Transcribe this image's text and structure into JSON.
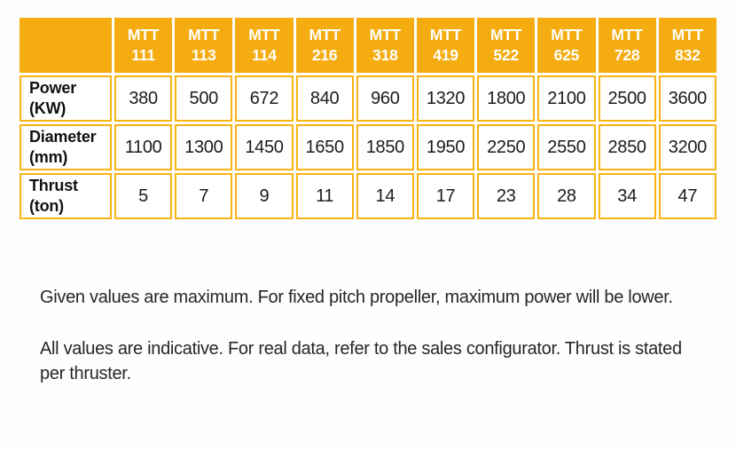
{
  "accent_color": "#F5AC10",
  "border_color": "#F9B313",
  "table": {
    "corner_label": "",
    "models": [
      "MTT 111",
      "MTT 113",
      "MTT 114",
      "MTT 216",
      "MTT 318",
      "MTT 419",
      "MTT 522",
      "MTT 625",
      "MTT 728",
      "MTT 832"
    ],
    "rows": [
      {
        "label": "Power",
        "unit": "(KW)",
        "values": [
          "380",
          "500",
          "672",
          "840",
          "960",
          "1320",
          "1800",
          "2100",
          "2500",
          "3600"
        ]
      },
      {
        "label": "Diameter",
        "unit": "(mm)",
        "values": [
          "1100",
          "1300",
          "1450",
          "1650",
          "1850",
          "1950",
          "2250",
          "2550",
          "2850",
          "3200"
        ]
      },
      {
        "label": "Thrust",
        "unit": "(ton)",
        "values": [
          "5",
          "7",
          "9",
          "11",
          "14",
          "17",
          "23",
          "28",
          "34",
          "47"
        ]
      }
    ]
  },
  "chart_data": {
    "type": "table",
    "title": "",
    "columns": [
      "",
      "MTT 111",
      "MTT 113",
      "MTT 114",
      "MTT 216",
      "MTT 318",
      "MTT 419",
      "MTT 522",
      "MTT 625",
      "MTT 728",
      "MTT 832"
    ],
    "rows": [
      [
        "Power (KW)",
        380,
        500,
        672,
        840,
        960,
        1320,
        1800,
        2100,
        2500,
        3600
      ],
      [
        "Diameter (mm)",
        1100,
        1300,
        1450,
        1650,
        1850,
        1950,
        2250,
        2550,
        2850,
        3200
      ],
      [
        "Thrust (ton)",
        5,
        7,
        9,
        11,
        14,
        17,
        23,
        28,
        34,
        47
      ]
    ]
  },
  "notes": [
    "Given values are maximum. For fixed pitch propeller, maximum power will be lower.",
    "All values are indicative. For real data, refer to the sales configurator. Thrust is stated per thruster."
  ]
}
